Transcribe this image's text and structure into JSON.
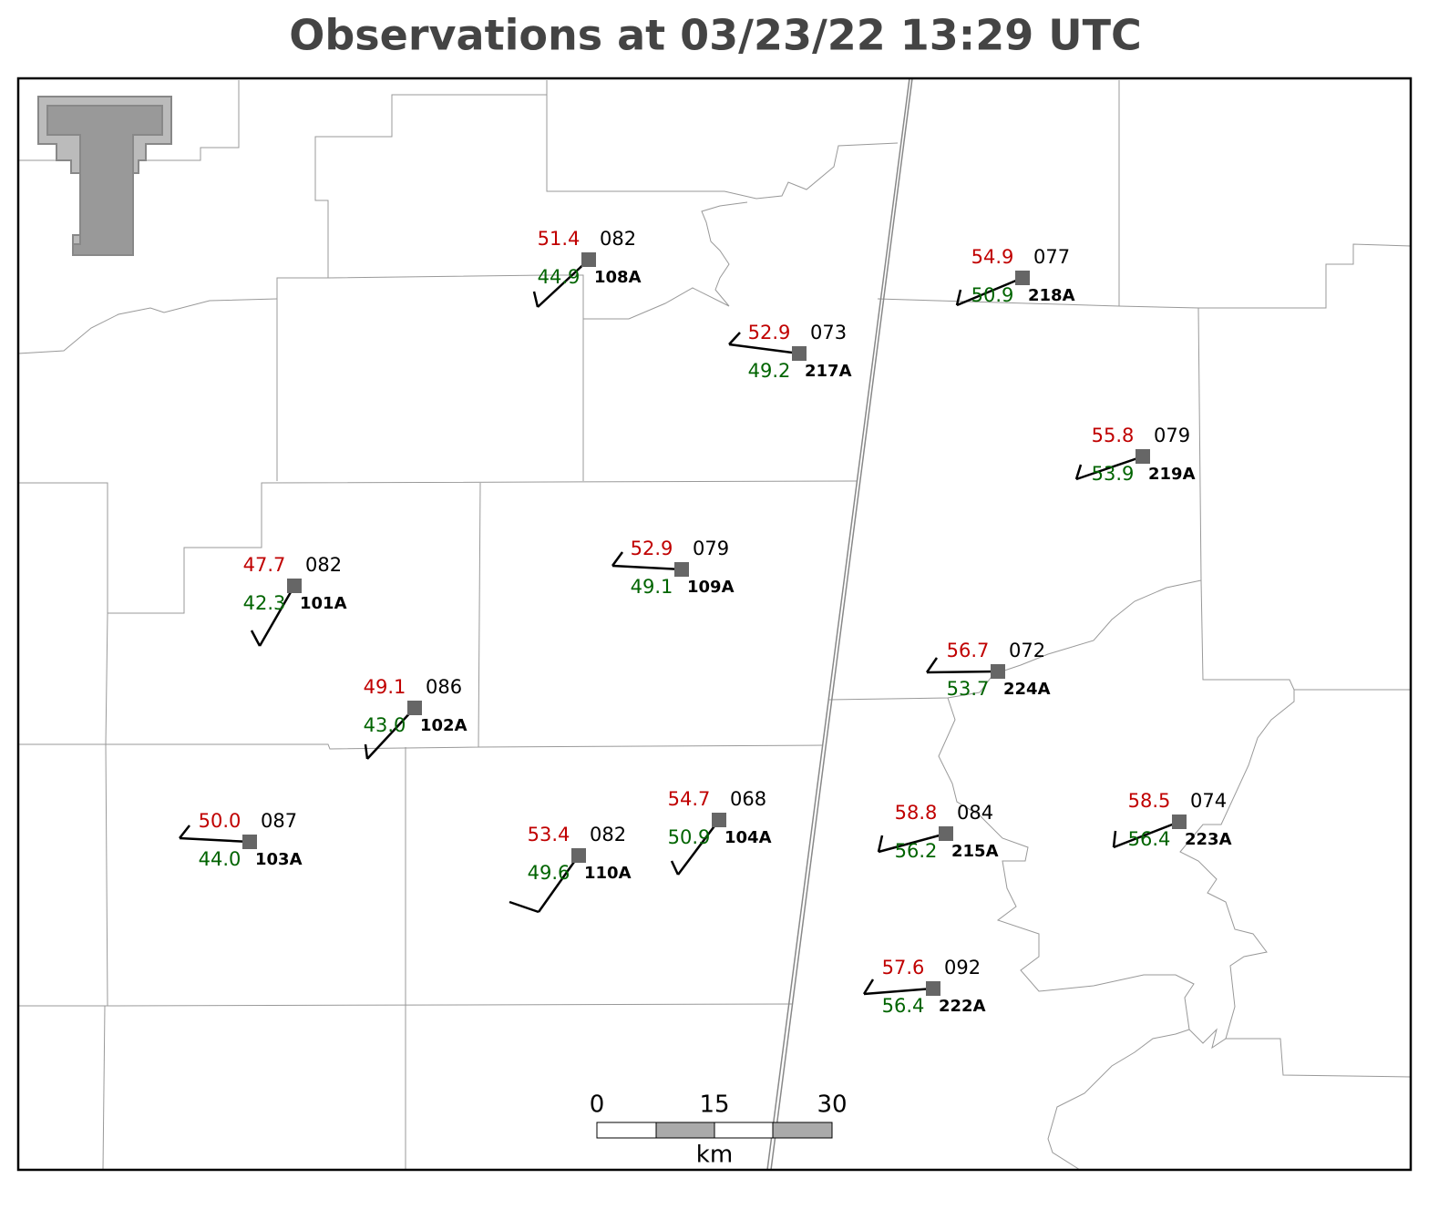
{
  "title": "Observations at 03/23/22 13:29 UTC",
  "stations": [
    {
      "id": "108A",
      "temp": "51.4",
      "dewpoint": "44.9",
      "pressure": "082"
    },
    {
      "id": "217A",
      "temp": "52.9",
      "dewpoint": "49.2",
      "pressure": "073"
    },
    {
      "id": "218A",
      "temp": "54.9",
      "dewpoint": "50.9",
      "pressure": "077"
    },
    {
      "id": "219A",
      "temp": "55.8",
      "dewpoint": "53.9",
      "pressure": "079"
    },
    {
      "id": "109A",
      "temp": "52.9",
      "dewpoint": "49.1",
      "pressure": "079"
    },
    {
      "id": "101A",
      "temp": "47.7",
      "dewpoint": "42.3",
      "pressure": "082"
    },
    {
      "id": "224A",
      "temp": "56.7",
      "dewpoint": "53.7",
      "pressure": "072"
    },
    {
      "id": "102A",
      "temp": "49.1",
      "dewpoint": "43.0",
      "pressure": "086"
    },
    {
      "id": "103A",
      "temp": "50.0",
      "dewpoint": "44.0",
      "pressure": "087"
    },
    {
      "id": "104A",
      "temp": "54.7",
      "dewpoint": "50.9",
      "pressure": "068"
    },
    {
      "id": "110A",
      "temp": "53.4",
      "dewpoint": "49.6",
      "pressure": "082"
    },
    {
      "id": "215A",
      "temp": "58.8",
      "dewpoint": "56.2",
      "pressure": "084"
    },
    {
      "id": "223A",
      "temp": "58.5",
      "dewpoint": "56.4",
      "pressure": "074"
    },
    {
      "id": "222A",
      "temp": "57.6",
      "dewpoint": "56.4",
      "pressure": "092"
    }
  ],
  "scale_bar": {
    "labels": [
      "0",
      "15",
      "30"
    ],
    "unit": "km"
  }
}
